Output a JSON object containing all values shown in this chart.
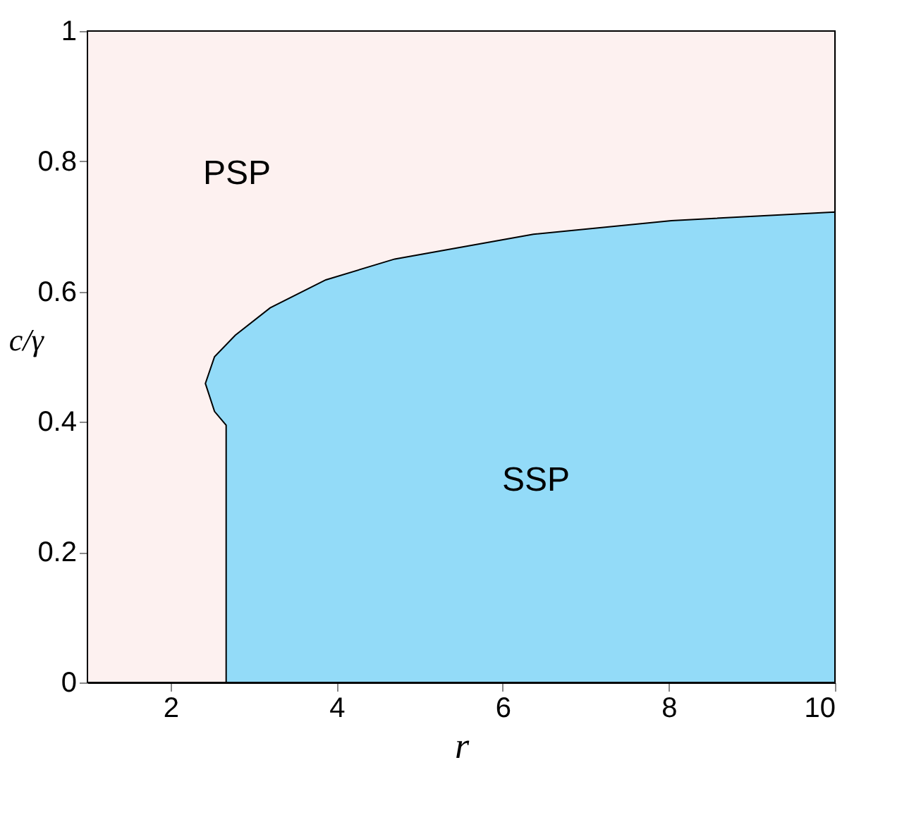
{
  "chart_data": {
    "type": "area",
    "xlabel": "r",
    "ylabel": "c/γ",
    "xlim": [
      1,
      10
    ],
    "xticks": [
      2,
      4,
      6,
      8,
      10
    ],
    "ylim": [
      0,
      1
    ],
    "yticks": [
      0,
      0.2,
      0.4,
      0.6,
      0.8,
      1
    ],
    "bands": [
      {
        "axis": "y",
        "from": 0,
        "to": 1,
        "label": "PSP",
        "color": "#fdf1f0"
      }
    ],
    "series": [
      {
        "color": "#93dbf8",
        "x": [
          2.67,
          2.67,
          2.53,
          2.42,
          2.53,
          2.78,
          3.2,
          3.87,
          4.7,
          6.37,
          8.03,
          10
        ],
        "values": [
          0,
          0.395,
          0.416,
          0.459,
          0.5,
          0.533,
          0.575,
          0.618,
          0.65,
          0.688,
          0.709,
          0.722
        ]
      }
    ],
    "annotations": [
      "SSP"
    ]
  }
}
